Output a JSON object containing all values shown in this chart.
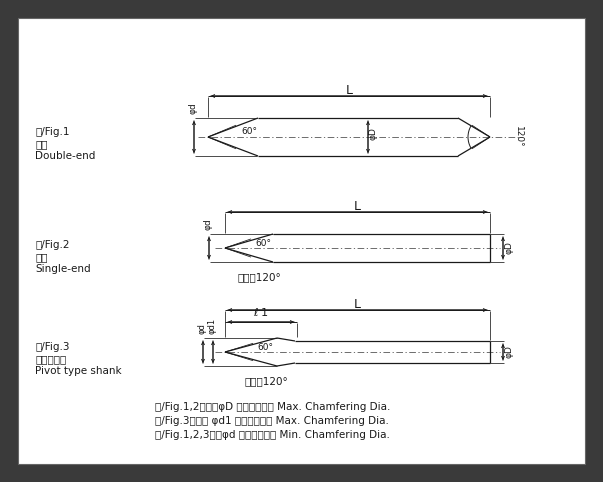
{
  "bg_outer": "#3a3a3a",
  "bg_inner": "#ffffff",
  "lc": "#1a1a1a",
  "fig1_line1": "図/Fig.1",
  "fig1_line2": "両刃",
  "fig1_line3": "Double-end",
  "fig2_line1": "図/Fig.2",
  "fig2_line2": "片刃",
  "fig2_line3": "Single-end",
  "fig3_line1": "図/Fig.3",
  "fig3_line2": "ルーマ形状",
  "fig3_line3": "Pivot type shank",
  "note1": "図/Fig.1,2　：　φD 最大面取り径 Max. Chamfering Dia.",
  "note2": "図/Fig.3　　： φd1 最大面取り径 Max. Chamfering Dia.",
  "note3": "図/Fig.1,2,3：　φd 最小面取り径 Min. Chamfering Dia.",
  "label_L": "L",
  "label_l1": "ℓ 1",
  "label_phid": "φd",
  "label_phiD": "φD",
  "label_phid1": "φd1",
  "label_60": "60°",
  "label_120arc": "120°",
  "label_tip120_2": "先端角120°",
  "label_tip120_3": "先端角120°"
}
